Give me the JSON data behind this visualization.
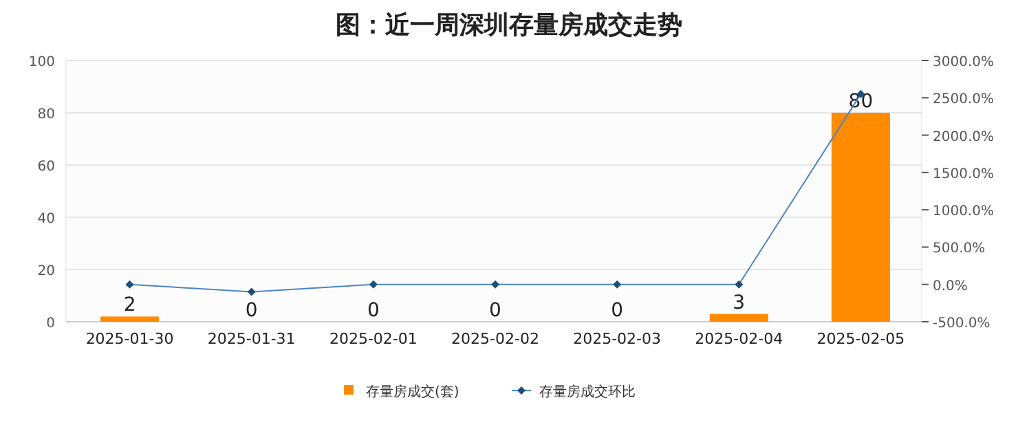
{
  "chart_data": {
    "type": "bar",
    "title": "图：近一周深圳存量房成交走势",
    "categories": [
      "2025-01-30",
      "2025-01-31",
      "2025-02-01",
      "2025-02-02",
      "2025-02-03",
      "2025-02-04",
      "2025-02-05"
    ],
    "series": [
      {
        "name": "存量房成交(套)",
        "color": "#ff8c00",
        "values": [
          2,
          0,
          0,
          0,
          0,
          3,
          80
        ],
        "value_labels": [
          "2",
          "0",
          "0",
          "0",
          "0",
          "3",
          "80"
        ]
      },
      {
        "name": "存量房成交环比",
        "type": "line",
        "axis": "y2",
        "color": "#4a86c8",
        "values": [
          0,
          -100,
          0,
          0,
          0,
          0,
          2550
        ],
        "marker": "diamond"
      }
    ],
    "ylim": [
      0,
      100
    ],
    "yticks": [
      0,
      20,
      40,
      60,
      80,
      100
    ],
    "y2lim": [
      -500,
      3000
    ],
    "y2ticks": [
      {
        "value": -500,
        "label": "-500.0%"
      },
      {
        "value": 0,
        "label": "0.0%"
      },
      {
        "value": 500,
        "label": "500.0%"
      },
      {
        "value": 1000,
        "label": "1000.0%"
      },
      {
        "value": 1500,
        "label": "1500.0%"
      },
      {
        "value": 2000,
        "label": "2000.0%"
      },
      {
        "value": 2500,
        "label": "2500.0%"
      },
      {
        "value": 3000,
        "label": "3000.0%"
      }
    ],
    "grid": "y",
    "legend": "bottom"
  }
}
